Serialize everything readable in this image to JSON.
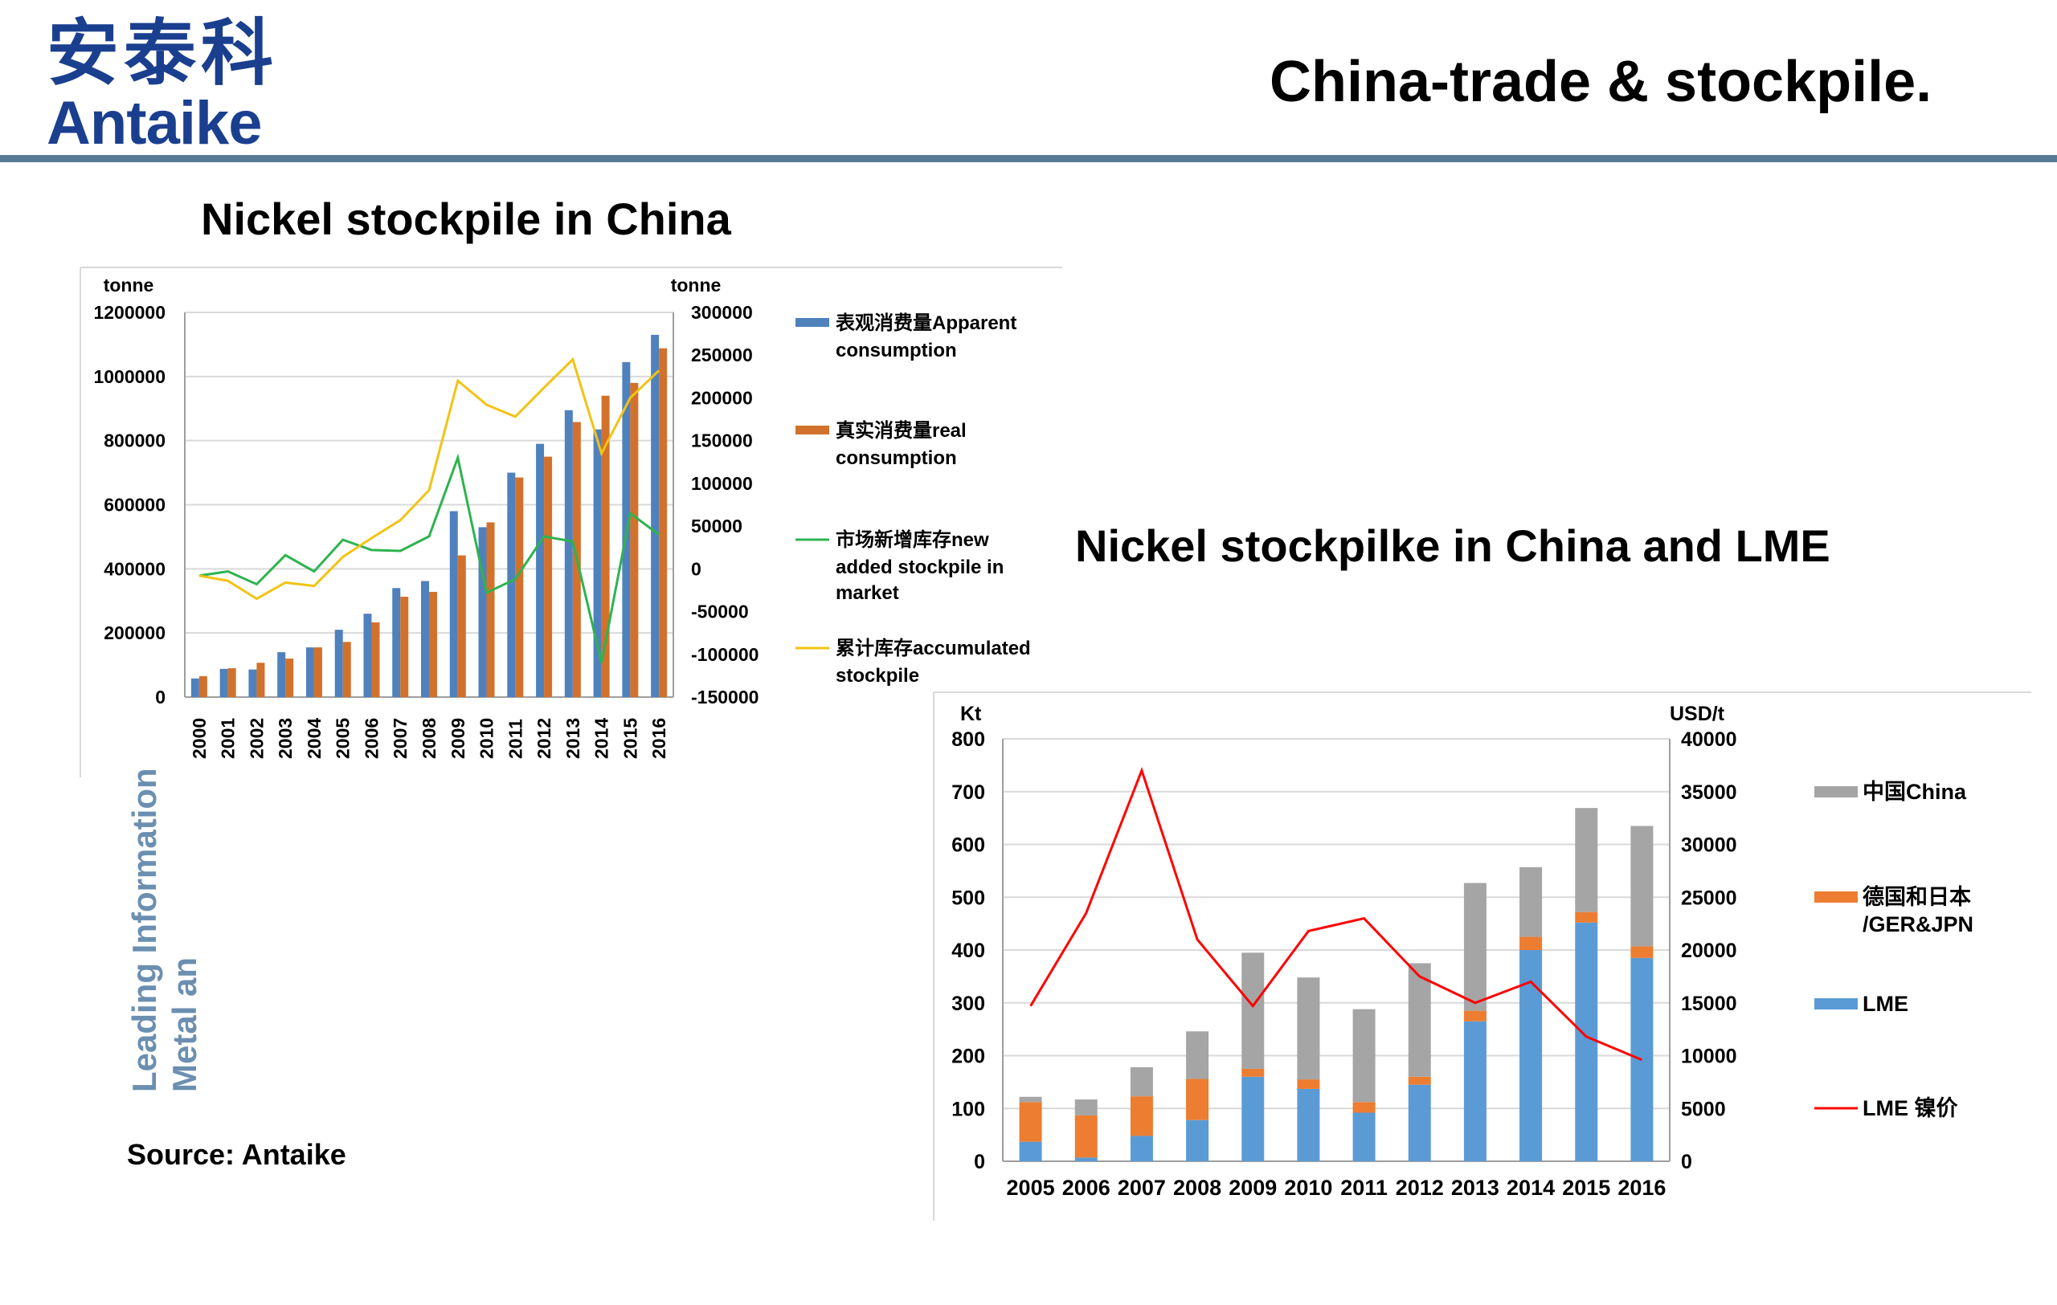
{
  "logo": {
    "cn": "安泰科",
    "en": "Antaike"
  },
  "header": {
    "title": "China-trade & stockpile."
  },
  "left_text": {
    "vertical": [
      "Leading Information",
      "Metal an"
    ],
    "source": "Source: Antaike"
  },
  "colors": {
    "brand": "#1b3f8f",
    "header_line": "#577a95",
    "blue1": "#4f81bd",
    "orange1": "#d2712c",
    "green": "#2eb34f",
    "yellow": "#f2c314",
    "gray": "#a5a5a5",
    "orange2": "#ed7d31",
    "blue2": "#5b9bd5",
    "red": "#ff0000"
  },
  "chart_data": [
    {
      "type": "bar",
      "title": "Nickel stockpile in China",
      "ylabel_left": "tonne",
      "ylabel_right": "tonne",
      "ylim_left": [
        0,
        1200000
      ],
      "ylim_right": [
        -150000,
        300000
      ],
      "left_ticks": [
        "1200000",
        "1000000",
        "800000",
        "600000",
        "400000",
        "200000",
        "0"
      ],
      "right_ticks": [
        "300000",
        "250000",
        "200000",
        "150000",
        "100000",
        "50000",
        "0",
        "-50000",
        "-100000",
        "-150000"
      ],
      "categories": [
        "2000",
        "2001",
        "2002",
        "2003",
        "2004",
        "2005",
        "2006",
        "2007",
        "2008",
        "2009",
        "2010",
        "2011",
        "2012",
        "2013",
        "2014",
        "2015",
        "2016"
      ],
      "legend_position": "right",
      "series": [
        {
          "name": "表观消费量Apparent consumption",
          "kind": "bar",
          "axis": "left",
          "values": [
            58000,
            88000,
            86000,
            140000,
            155000,
            210000,
            260000,
            340000,
            362000,
            580000,
            530000,
            700000,
            790000,
            895000,
            835000,
            1045000,
            1130000
          ]
        },
        {
          "name": "真实消费量real consumption",
          "kind": "bar",
          "axis": "left",
          "values": [
            65000,
            90000,
            107000,
            120000,
            155000,
            172000,
            233000,
            313000,
            328000,
            442000,
            545000,
            685000,
            750000,
            858000,
            940000,
            980000,
            1088000
          ]
        },
        {
          "name": "市场新增库存new added stockpile in market",
          "kind": "line",
          "axis": "right",
          "values": [
            -8000,
            -3000,
            -18000,
            16000,
            -3000,
            34000,
            22000,
            21000,
            38000,
            130000,
            -28000,
            -12000,
            38000,
            32000,
            -110000,
            65000,
            40000
          ]
        },
        {
          "name": "累计库存accumulated stockpile",
          "kind": "line",
          "axis": "right",
          "values": [
            -8000,
            -14000,
            -35000,
            -16000,
            -20000,
            14000,
            36000,
            57000,
            92000,
            220000,
            192000,
            178000,
            212000,
            245000,
            135000,
            200000,
            232000
          ]
        }
      ]
    },
    {
      "type": "bar",
      "title": "Nickel stockpilke in China and LME",
      "ylabel_left": "Kt",
      "ylabel_right": "USD/t",
      "ylim_left": [
        0,
        800
      ],
      "ylim_right": [
        0,
        40000
      ],
      "left_ticks": [
        "800",
        "700",
        "600",
        "500",
        "400",
        "300",
        "200",
        "100",
        "0"
      ],
      "right_ticks": [
        "40000",
        "35000",
        "30000",
        "25000",
        "20000",
        "15000",
        "10000",
        "5000",
        "0"
      ],
      "categories": [
        "2005",
        "2006",
        "2007",
        "2008",
        "2009",
        "2010",
        "2011",
        "2012",
        "2013",
        "2014",
        "2015",
        "2016"
      ],
      "stacked": true,
      "legend_position": "right",
      "series": [
        {
          "name": "LME",
          "kind": "bar",
          "axis": "left",
          "values": [
            37,
            7,
            48,
            78,
            160,
            137,
            92,
            145,
            265,
            400,
            452,
            385
          ]
        },
        {
          "name": "德国和日本/GER&JPN",
          "kind": "bar",
          "axis": "left",
          "values": [
            75,
            80,
            75,
            78,
            15,
            18,
            20,
            15,
            20,
            25,
            20,
            22
          ]
        },
        {
          "name": "中国China",
          "kind": "bar",
          "axis": "left",
          "values": [
            10,
            30,
            55,
            90,
            220,
            193,
            176,
            215,
            242,
            132,
            197,
            228
          ]
        },
        {
          "name": "LME 镍价",
          "kind": "line",
          "axis": "right",
          "values": [
            14700,
            23500,
            37000,
            21000,
            14700,
            21800,
            23000,
            17500,
            15000,
            17000,
            11800,
            9600
          ]
        }
      ]
    }
  ]
}
